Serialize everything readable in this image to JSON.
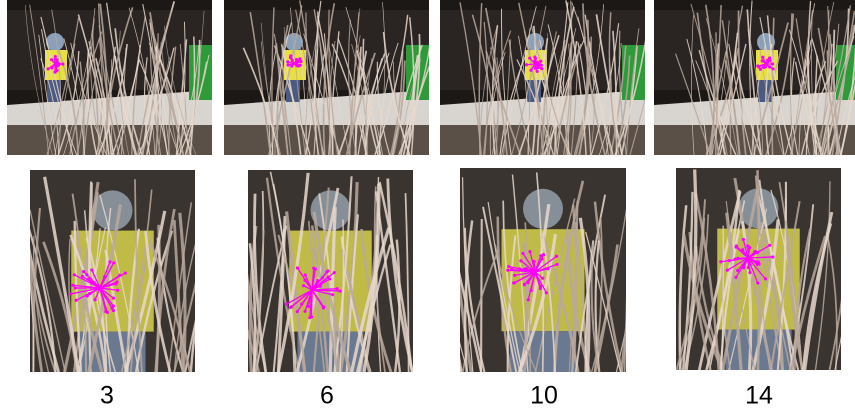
{
  "frames": [
    {
      "label": 3
    },
    {
      "label": 6
    },
    {
      "label": 10
    },
    {
      "label": 14
    }
  ]
}
